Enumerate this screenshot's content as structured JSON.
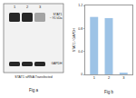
{
  "chart_data": {
    "type": "bar",
    "y_label": "STAT1 / GAPDH",
    "categories": [
      "1",
      "2",
      "3"
    ],
    "values": [
      1.0,
      0.98,
      0.03
    ],
    "color": "#9dc3e6",
    "ylim": [
      0,
      1.2
    ],
    "yticks": [
      0,
      0.4,
      0.8,
      1.2
    ],
    "grid": false,
    "annotations": [
      "Fig b"
    ]
  },
  "blot": {
    "lanes": [
      "1",
      "2",
      "3"
    ],
    "bands": [
      {
        "label": "STAT1\n~ 91 kDa"
      },
      {
        "label": "GAPDH"
      }
    ],
    "x_label": "STAT1 siRNA Transfected",
    "caption": "Fig a"
  }
}
